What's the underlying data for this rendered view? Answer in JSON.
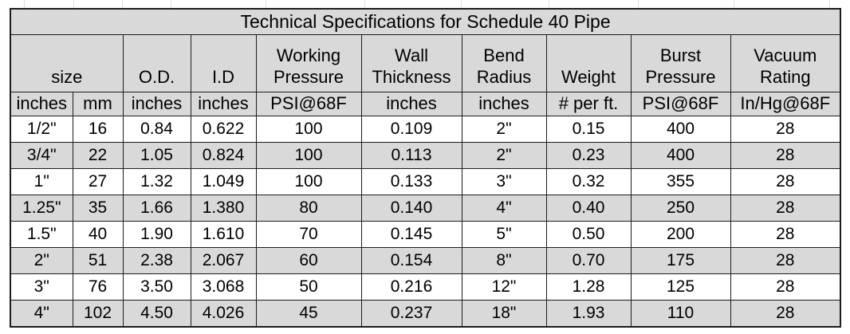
{
  "title": "Technical Specifications for Schedule 40 Pipe",
  "headers": [
    {
      "label": "size"
    },
    {
      "label": "O.D."
    },
    {
      "label": "I.D"
    },
    {
      "label": "Working\nPressure"
    },
    {
      "label": "Wall\nThickness"
    },
    {
      "label": "Bend\nRadius"
    },
    {
      "label": "Weight"
    },
    {
      "label": "Burst\nPressure"
    },
    {
      "label": "Vacuum\nRating"
    }
  ],
  "units": [
    "inches",
    "mm",
    "inches",
    "inches",
    "PSI@68F",
    "inches",
    "inches",
    "# per ft.",
    "PSI@68F",
    "In/Hg@68F"
  ],
  "rows": [
    [
      "1/2\"",
      "16",
      "0.84",
      "0.622",
      "100",
      "0.109",
      "2\"",
      "0.15",
      "400",
      "28"
    ],
    [
      "3/4\"",
      "22",
      "1.05",
      "0.824",
      "100",
      "0.113",
      "2\"",
      "0.23",
      "400",
      "28"
    ],
    [
      "1\"",
      "27",
      "1.32",
      "1.049",
      "100",
      "0.133",
      "3\"",
      "0.32",
      "355",
      "28"
    ],
    [
      "1.25\"",
      "35",
      "1.66",
      "1.380",
      "80",
      "0.140",
      "4\"",
      "0.40",
      "250",
      "28"
    ],
    [
      "1.5\"",
      "40",
      "1.90",
      "1.610",
      "70",
      "0.145",
      "5\"",
      "0.50",
      "200",
      "28"
    ],
    [
      "2\"",
      "51",
      "2.38",
      "2.067",
      "60",
      "0.154",
      "8\"",
      "0.70",
      "175",
      "28"
    ],
    [
      "3\"",
      "76",
      "3.50",
      "3.068",
      "50",
      "0.216",
      "12\"",
      "1.28",
      "125",
      "28"
    ],
    [
      "4\"",
      "102",
      "4.50",
      "4.026",
      "45",
      "0.237",
      "18\"",
      "1.93",
      "110",
      "28"
    ]
  ],
  "colors": {
    "header_bg": "#d9d9d9",
    "alt_row_bg": "#d9d9d9",
    "row_bg": "#ffffff",
    "border": "#1c1c1c",
    "text": "#000000"
  }
}
